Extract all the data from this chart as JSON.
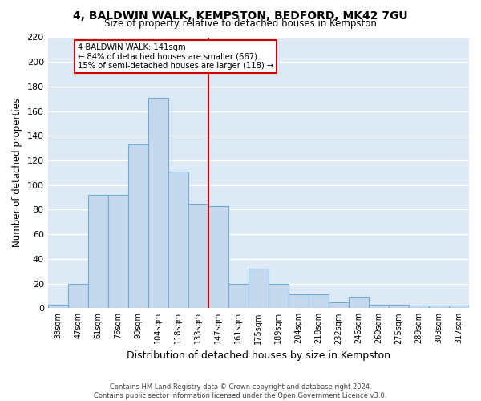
{
  "title": "4, BALDWIN WALK, KEMPSTON, BEDFORD, MK42 7GU",
  "subtitle": "Size of property relative to detached houses in Kempston",
  "xlabel": "Distribution of detached houses by size in Kempston",
  "ylabel": "Number of detached properties",
  "categories": [
    "33sqm",
    "47sqm",
    "61sqm",
    "76sqm",
    "90sqm",
    "104sqm",
    "118sqm",
    "133sqm",
    "147sqm",
    "161sqm",
    "175sqm",
    "189sqm",
    "204sqm",
    "218sqm",
    "232sqm",
    "246sqm",
    "260sqm",
    "275sqm",
    "289sqm",
    "303sqm",
    "317sqm"
  ],
  "bar_heights": [
    3,
    20,
    92,
    92,
    133,
    171,
    111,
    85,
    83,
    20,
    32,
    20,
    11,
    11,
    5,
    9,
    3,
    3,
    2,
    2
  ],
  "bar_heights_full": [
    3,
    20,
    92,
    92,
    133,
    171,
    111,
    85,
    83,
    20,
    32,
    20,
    11,
    11,
    5,
    9,
    3,
    3,
    2,
    2,
    2
  ],
  "bar_color": "#c5d8ee",
  "bar_edge_color": "#6aaed6",
  "vline_color": "#cc0000",
  "annotation_text": "4 BALDWIN WALK: 141sqm\n← 84% of detached houses are smaller (667)\n15% of semi-detached houses are larger (118) →",
  "annotation_box_color": "#cc0000",
  "ylim": [
    0,
    220
  ],
  "yticks": [
    0,
    20,
    40,
    60,
    80,
    100,
    120,
    140,
    160,
    180,
    200,
    220
  ],
  "background_color": "#dde9f5",
  "grid_color": "#ffffff",
  "footer1": "Contains HM Land Registry data © Crown copyright and database right 2024.",
  "footer2": "Contains public sector information licensed under the Open Government Licence v3.0."
}
